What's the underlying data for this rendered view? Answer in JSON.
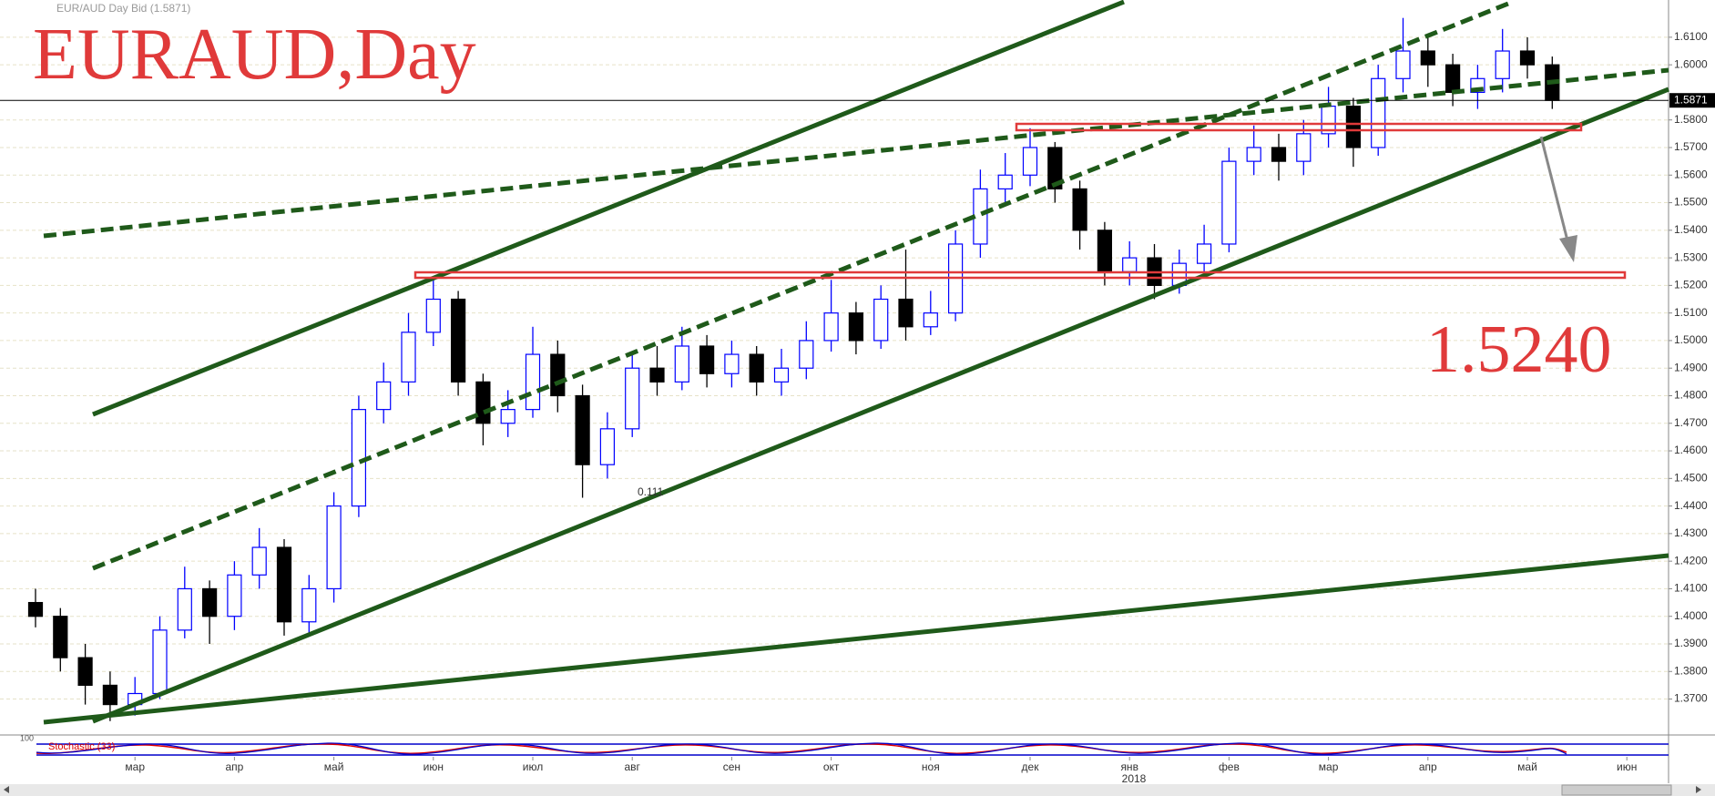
{
  "header": "EUR/AUD Day Bid (1.5871)",
  "title": "EURAUD,Day",
  "target_label": "1.5240",
  "fib_label": "0.111",
  "indicator_label": "Stochastic (33)",
  "indicator_top": "100",
  "year_label": "2018",
  "chart_data": {
    "type": "candlestick",
    "up_color": "#0000ff",
    "down_color": "#000000",
    "grid": true,
    "last_price": 1.5871,
    "ylim": [
      1.3573,
      1.6235
    ],
    "yticks": [
      {
        "value": 1.37,
        "label": "1.3700"
      },
      {
        "value": 1.38,
        "label": "1.3800"
      },
      {
        "value": 1.39,
        "label": "1.3900"
      },
      {
        "value": 1.4,
        "label": "1.4000"
      },
      {
        "value": 1.41,
        "label": "1.4100"
      },
      {
        "value": 1.42,
        "label": "1.4200"
      },
      {
        "value": 1.43,
        "label": "1.4300"
      },
      {
        "value": 1.44,
        "label": "1.4400"
      },
      {
        "value": 1.45,
        "label": "1.4500"
      },
      {
        "value": 1.46,
        "label": "1.4600"
      },
      {
        "value": 1.47,
        "label": "1.4700"
      },
      {
        "value": 1.48,
        "label": "1.4800"
      },
      {
        "value": 1.49,
        "label": "1.4900"
      },
      {
        "value": 1.5,
        "label": "1.5000"
      },
      {
        "value": 1.51,
        "label": "1.5100"
      },
      {
        "value": 1.52,
        "label": "1.5200"
      },
      {
        "value": 1.53,
        "label": "1.5300"
      },
      {
        "value": 1.54,
        "label": "1.5400"
      },
      {
        "value": 1.55,
        "label": "1.5500"
      },
      {
        "value": 1.56,
        "label": "1.5600"
      },
      {
        "value": 1.57,
        "label": "1.5700"
      },
      {
        "value": 1.58,
        "label": "1.5800"
      },
      {
        "value": 1.6,
        "label": "1.6000"
      },
      {
        "value": 1.61,
        "label": "1.6100"
      }
    ],
    "categories": [
      null,
      null,
      null,
      null,
      "мар",
      null,
      null,
      null,
      "апр",
      null,
      null,
      null,
      "май",
      null,
      null,
      null,
      "июн",
      null,
      null,
      null,
      "июл",
      null,
      null,
      null,
      "авг",
      null,
      null,
      null,
      "сен",
      null,
      null,
      null,
      "окт",
      null,
      null,
      null,
      "ноя",
      null,
      null,
      null,
      "дек",
      null,
      null,
      null,
      "янв",
      null,
      null,
      null,
      "фев",
      null,
      null,
      null,
      "мар",
      null,
      null,
      null,
      "апр",
      null,
      null,
      null,
      "май",
      null,
      null,
      null,
      "июн"
    ],
    "open": [
      1.405,
      1.4,
      1.385,
      1.375,
      1.368,
      1.372,
      1.395,
      1.41,
      1.4,
      1.415,
      1.425,
      1.398,
      1.41,
      1.44,
      1.475,
      1.485,
      1.503,
      1.515,
      1.485,
      1.47,
      1.475,
      1.495,
      1.48,
      1.455,
      1.468,
      1.49,
      1.485,
      1.498,
      1.488,
      1.495,
      1.485,
      1.49,
      1.5,
      1.51,
      1.5,
      1.515,
      1.505,
      1.51,
      1.535,
      1.555,
      1.56,
      1.57,
      1.555,
      1.54,
      1.525,
      1.53,
      1.52,
      1.528,
      1.535,
      1.565,
      1.57,
      1.565,
      1.575,
      1.585,
      1.57,
      1.595,
      1.605,
      1.6,
      1.59,
      1.595,
      1.605,
      1.6,
      null,
      null,
      null
    ],
    "high": [
      1.41,
      1.403,
      1.39,
      1.38,
      1.378,
      1.4,
      1.418,
      1.413,
      1.42,
      1.432,
      1.428,
      1.415,
      1.445,
      1.48,
      1.492,
      1.51,
      1.523,
      1.518,
      1.488,
      1.482,
      1.505,
      1.5,
      1.484,
      1.474,
      1.495,
      1.498,
      1.505,
      1.502,
      1.5,
      1.498,
      1.497,
      1.507,
      1.522,
      1.514,
      1.52,
      1.533,
      1.518,
      1.54,
      1.562,
      1.568,
      1.577,
      1.572,
      1.558,
      1.543,
      1.536,
      1.535,
      1.533,
      1.542,
      1.57,
      1.578,
      1.575,
      1.58,
      1.592,
      1.588,
      1.6,
      1.617,
      1.61,
      1.604,
      1.6,
      1.613,
      1.61,
      1.603,
      null,
      null,
      null
    ],
    "low": [
      1.396,
      1.38,
      1.368,
      1.362,
      1.364,
      1.37,
      1.392,
      1.39,
      1.395,
      1.41,
      1.393,
      1.394,
      1.405,
      1.436,
      1.47,
      1.48,
      1.498,
      1.48,
      1.462,
      1.465,
      1.472,
      1.474,
      1.443,
      1.45,
      1.465,
      1.48,
      1.482,
      1.483,
      1.483,
      1.48,
      1.48,
      1.486,
      1.496,
      1.495,
      1.497,
      1.5,
      1.502,
      1.507,
      1.53,
      1.55,
      1.556,
      1.55,
      1.533,
      1.52,
      1.52,
      1.515,
      1.517,
      1.524,
      1.532,
      1.56,
      1.558,
      1.56,
      1.57,
      1.563,
      1.567,
      1.59,
      1.592,
      1.585,
      1.584,
      1.59,
      1.595,
      1.584,
      null,
      null,
      null
    ],
    "close": [
      1.4,
      1.385,
      1.375,
      1.368,
      1.372,
      1.395,
      1.41,
      1.4,
      1.415,
      1.425,
      1.398,
      1.41,
      1.44,
      1.475,
      1.485,
      1.503,
      1.515,
      1.485,
      1.47,
      1.475,
      1.495,
      1.48,
      1.455,
      1.468,
      1.49,
      1.485,
      1.498,
      1.488,
      1.495,
      1.485,
      1.49,
      1.5,
      1.51,
      1.5,
      1.515,
      1.505,
      1.51,
      1.535,
      1.555,
      1.56,
      1.57,
      1.555,
      1.54,
      1.525,
      1.53,
      1.52,
      1.528,
      1.535,
      1.565,
      1.57,
      1.565,
      1.575,
      1.585,
      1.57,
      1.595,
      1.605,
      1.6,
      1.59,
      1.595,
      1.605,
      1.6,
      1.5871,
      null,
      null,
      null
    ]
  }
}
